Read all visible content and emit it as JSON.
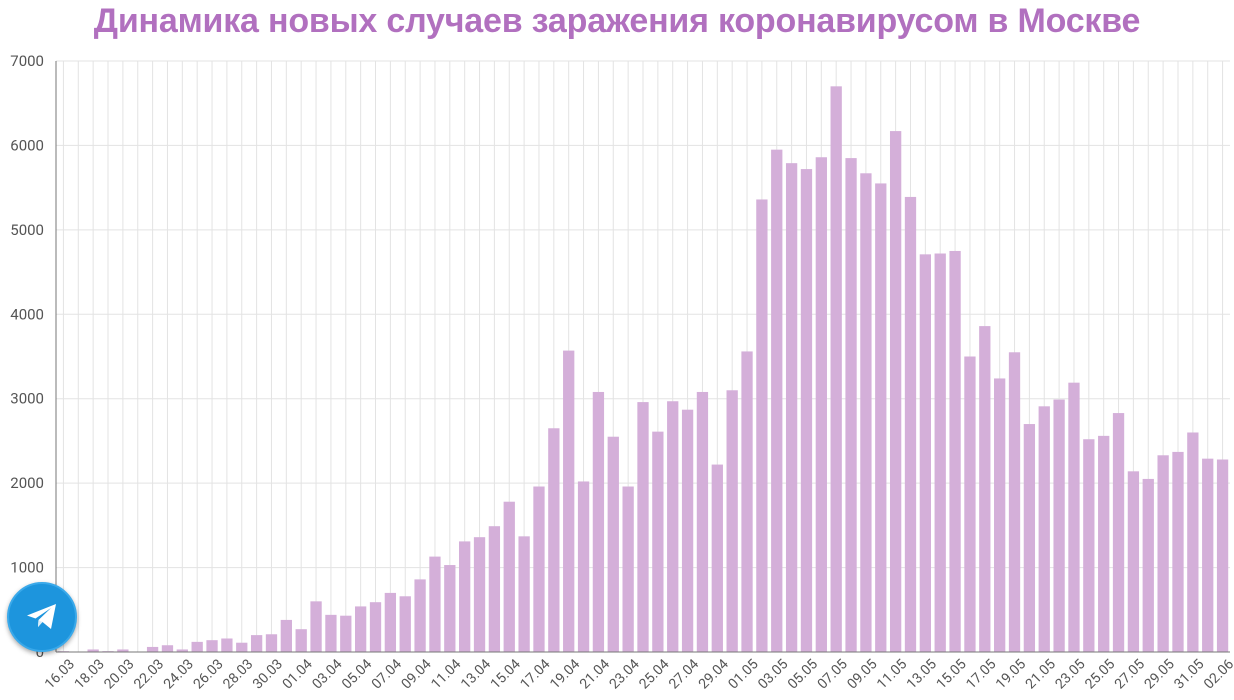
{
  "page": {
    "title": "Динамика новых случаев заражения коронавирусом в Москве"
  },
  "colors": {
    "title": "#b170bf",
    "bar": "#d4afd9",
    "grid": "#e3e3e3",
    "axis": "#777777",
    "text": "#555555"
  },
  "icons": {
    "floating_button": "telegram-icon"
  },
  "chart_data": {
    "type": "bar",
    "title": "Динамика новых случаев заражения коронавирусом в Москве",
    "xlabel": "",
    "ylabel": "",
    "ylim": [
      0,
      7000
    ],
    "yticks": [
      0,
      1000,
      2000,
      3000,
      4000,
      5000,
      6000,
      7000
    ],
    "grid": true,
    "categories": [
      "16.03",
      "17.03",
      "18.03",
      "19.03",
      "20.03",
      "21.03",
      "22.03",
      "23.03",
      "24.03",
      "25.03",
      "26.03",
      "27.03",
      "28.03",
      "29.03",
      "30.03",
      "31.03",
      "01.04",
      "02.04",
      "03.04",
      "04.04",
      "05.04",
      "06.04",
      "07.04",
      "08.04",
      "09.04",
      "10.04",
      "11.04",
      "12.04",
      "13.04",
      "14.04",
      "15.04",
      "16.04",
      "17.04",
      "18.04",
      "19.04",
      "20.04",
      "21.04",
      "22.04",
      "23.04",
      "24.04",
      "25.04",
      "26.04",
      "27.04",
      "28.04",
      "29.04",
      "30.04",
      "01.05",
      "02.05",
      "03.05",
      "04.05",
      "05.05",
      "06.05",
      "07.05",
      "08.05",
      "09.05",
      "10.05",
      "11.05",
      "12.05",
      "13.05",
      "14.05",
      "15.05",
      "16.05",
      "17.05",
      "18.05",
      "19.05",
      "20.05",
      "21.05",
      "22.05",
      "23.05",
      "24.05",
      "25.05",
      "26.05",
      "27.05",
      "28.05",
      "29.05",
      "30.05",
      "31.05",
      "01.06",
      "02.06"
    ],
    "tick_labels": [
      "16.03",
      "18.03",
      "20.03",
      "22.03",
      "24.03",
      "26.03",
      "28.03",
      "30.03",
      "01.04",
      "03.04",
      "05.04",
      "07.04",
      "09.04",
      "11.04",
      "13.04",
      "15.04",
      "17.04",
      "19.04",
      "21.04",
      "23.04",
      "25.04",
      "27.04",
      "29.04",
      "01.05",
      "03.05",
      "05.05",
      "07.05",
      "09.05",
      "11.05",
      "13.05",
      "15.05",
      "17.05",
      "19.05",
      "21.05",
      "23.05",
      "25.05",
      "27.05",
      "29.05",
      "31.05",
      "02.06"
    ],
    "values": [
      10,
      0,
      30,
      10,
      30,
      0,
      60,
      80,
      30,
      120,
      140,
      160,
      110,
      200,
      210,
      380,
      270,
      600,
      440,
      430,
      540,
      590,
      700,
      660,
      860,
      1130,
      1030,
      1310,
      1360,
      1490,
      1780,
      1370,
      1960,
      2650,
      3570,
      2020,
      3080,
      2550,
      1960,
      2960,
      2610,
      2970,
      2870,
      3080,
      2220,
      3100,
      3560,
      5360,
      5950,
      5790,
      5720,
      5860,
      6700,
      5850,
      5670,
      5550,
      6170,
      5390,
      4710,
      4720,
      4750,
      3500,
      3860,
      3240,
      3550,
      2700,
      2910,
      2990,
      3190,
      2520,
      2560,
      2830,
      2140,
      2050,
      2330,
      2370,
      2600,
      2290,
      2280
    ]
  }
}
